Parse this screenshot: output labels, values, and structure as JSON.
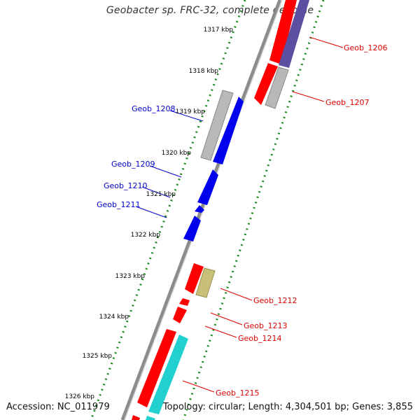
{
  "title": "Geobacter sp. FRC-32, complete genome",
  "accession_label": "Accession: NC_011979",
  "summary_label": "Topology: circular; Length: 4,304,501 bp; Genes: 3,855",
  "kbp_ticks": [
    "1317 kbp",
    "1318 kbp",
    "1319 kbp",
    "1320 kbp",
    "1321 kbp",
    "1322 kbp",
    "1323 kbp",
    "1324 kbp",
    "1325 kbp",
    "1326 kbp"
  ],
  "gene_labels": [
    "Geob_1206",
    "Geob_1207",
    "Geob_1208",
    "Geob_1209",
    "Geob_1210",
    "Geob_1211",
    "Geob_1212",
    "Geob_1213",
    "Geob_1214",
    "Geob_1215"
  ],
  "colors": {
    "backbone": "#8c8c8c",
    "forward_cds": "#ff0000",
    "reverse_cds": "#0000ee",
    "gray_feature": "#b8b8b8",
    "purple_feature": "#5a4fa0",
    "olive_feature": "#c8c07a",
    "cyan_feature": "#22d0d0",
    "tick_dots": "#1a8a1a",
    "red_label": "#dd0000",
    "blue_label": "#0000cc"
  }
}
